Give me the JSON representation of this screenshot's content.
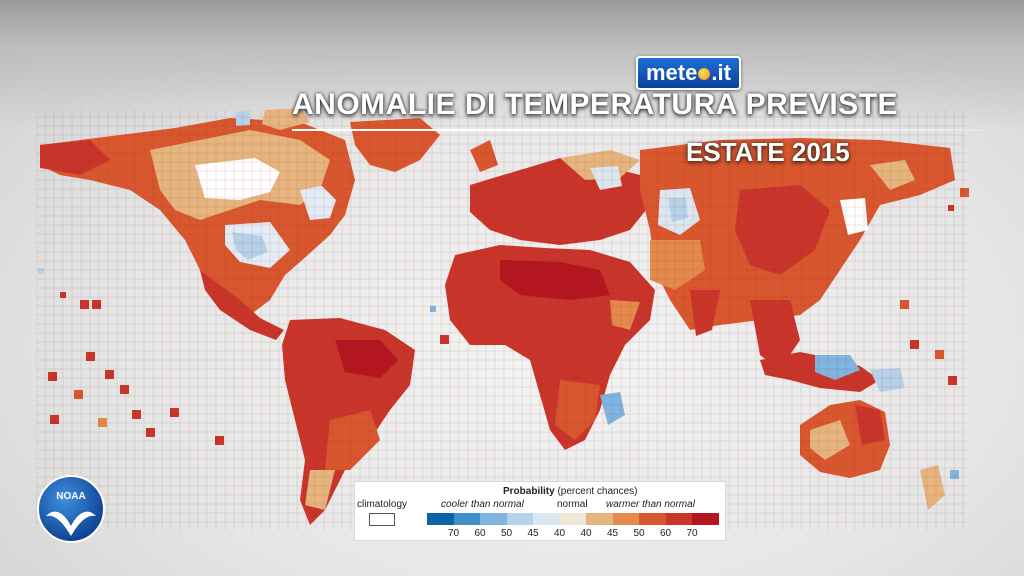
{
  "header": {
    "logo": {
      "text_before": "mete",
      "text_after": ".it"
    },
    "title": "ANOMALIE DI TEMPERATURA PREVISTE",
    "subtitle": "ESTATE 2015"
  },
  "badge": {
    "text": "NOAA"
  },
  "legend": {
    "probability_label": "Probability",
    "probability_unit": "(percent chances)",
    "climatology_label": "climatology",
    "cooler_label": "cooler than normal",
    "normal_label": "normal",
    "warmer_label": "warmer than normal",
    "colors": [
      "#0b63a8",
      "#3f8fcb",
      "#7fb5de",
      "#b5d2ea",
      "#dbe6ef",
      "#efe6d8",
      "#e6b47e",
      "#e38a4c",
      "#d9572e",
      "#c9352a",
      "#b5151f"
    ],
    "ticks": [
      "70",
      "60",
      "50",
      "45",
      "40",
      "40",
      "45",
      "50",
      "60",
      "70"
    ]
  },
  "colors": {
    "ocean": "#e9e9e9",
    "warm_low": "#e6b47e",
    "warm_mid": "#d9572e",
    "warm_high": "#c9352a",
    "cool": "#b5d2ea"
  }
}
